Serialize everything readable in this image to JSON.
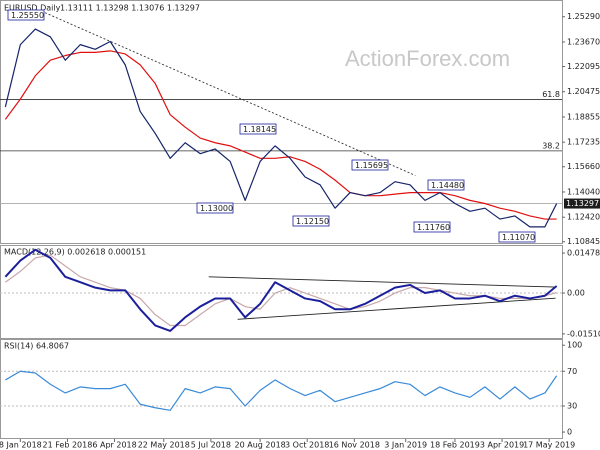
{
  "chart_data": [
    {
      "type": "line",
      "title": "EURUSD Daily",
      "ohlc": "1.13111 1.13298 1.13076 1.13297",
      "watermark": "ActionForex.com",
      "xlim": [
        "2017-12-20",
        "2019-05-29"
      ],
      "x": [
        "2017-12-25",
        "2018-01-08",
        "2018-01-22",
        "2018-02-05",
        "2018-02-19",
        "2018-03-05",
        "2018-03-19",
        "2018-04-02",
        "2018-04-16",
        "2018-04-30",
        "2018-05-14",
        "2018-05-28",
        "2018-06-11",
        "2018-06-25",
        "2018-07-09",
        "2018-07-23",
        "2018-08-06",
        "2018-08-20",
        "2018-09-03",
        "2018-09-17",
        "2018-10-01",
        "2018-10-15",
        "2018-10-29",
        "2018-11-12",
        "2018-11-26",
        "2018-12-10",
        "2018-12-24",
        "2019-01-07",
        "2019-01-21",
        "2019-02-04",
        "2019-02-18",
        "2019-03-04",
        "2019-03-18",
        "2019-04-01",
        "2019-04-15",
        "2019-04-29",
        "2019-05-13",
        "2019-05-24"
      ],
      "ylim": [
        1.107,
        1.263
      ],
      "yticks": [
        {
          "value": 1.2529,
          "label": "1.25290"
        },
        {
          "value": 1.2367,
          "label": "1.23670"
        },
        {
          "value": 1.22095,
          "label": "1.22095"
        },
        {
          "value": 1.20475,
          "label": "1.20475"
        },
        {
          "value": 1.18855,
          "label": "1.18855"
        },
        {
          "value": 1.17235,
          "label": "1.17235"
        },
        {
          "value": 1.1566,
          "label": "1.15660"
        },
        {
          "value": 1.1404,
          "label": "1.14040"
        },
        {
          "value": 1.1242,
          "label": "1.12420"
        },
        {
          "value": 1.10845,
          "label": "1.10845"
        }
      ],
      "last_price": {
        "value": 1.13297,
        "label": "1.13297"
      },
      "fib_levels": [
        {
          "label": "61.8",
          "value": 1.1998
        },
        {
          "label": "38.2",
          "value": 1.1668
        }
      ],
      "trendline": {
        "x": [
          "2018-01-31",
          "2019-01-12"
        ],
        "values": [
          1.2555,
          1.151
        ]
      },
      "annotations": [
        "1.25550",
        "1.18145",
        "1.13000",
        "1.12150",
        "1.15695",
        "1.14480",
        "1.11760",
        "1.11070"
      ],
      "series": [
        {
          "color": "#16246a",
          "values": [
            1.195,
            1.235,
            1.245,
            1.24,
            1.225,
            1.235,
            1.232,
            1.237,
            1.222,
            1.192,
            1.178,
            1.162,
            1.172,
            1.165,
            1.168,
            1.16,
            1.135,
            1.16,
            1.17,
            1.162,
            1.15,
            1.145,
            1.13,
            1.14,
            1.138,
            1.14,
            1.147,
            1.145,
            1.135,
            1.14,
            1.133,
            1.128,
            1.13,
            1.123,
            1.125,
            1.118,
            1.118,
            1.13297
          ]
        },
        {
          "color": "#e01010",
          "values": [
            1.187,
            1.2,
            1.215,
            1.225,
            1.228,
            1.23,
            1.23,
            1.231,
            1.229,
            1.222,
            1.21,
            1.19,
            1.182,
            1.175,
            1.172,
            1.17,
            1.166,
            1.162,
            1.162,
            1.163,
            1.16,
            1.155,
            1.148,
            1.14,
            1.138,
            1.138,
            1.139,
            1.14,
            1.14,
            1.14,
            1.138,
            1.135,
            1.133,
            1.13,
            1.128,
            1.125,
            1.123,
            1.123
          ]
        }
      ]
    },
    {
      "type": "line",
      "title": "MACD(12,26,9) 0.002618 0.000151",
      "xlim": [
        "2017-12-20",
        "2019-05-29"
      ],
      "x": [
        "2017-12-25",
        "2018-01-08",
        "2018-01-22",
        "2018-02-05",
        "2018-02-19",
        "2018-03-05",
        "2018-03-19",
        "2018-04-02",
        "2018-04-16",
        "2018-04-30",
        "2018-05-14",
        "2018-05-28",
        "2018-06-11",
        "2018-06-25",
        "2018-07-09",
        "2018-07-23",
        "2018-08-06",
        "2018-08-20",
        "2018-09-03",
        "2018-09-17",
        "2018-10-01",
        "2018-10-15",
        "2018-10-29",
        "2018-11-12",
        "2018-11-26",
        "2018-12-10",
        "2018-12-24",
        "2019-01-07",
        "2019-01-21",
        "2019-02-04",
        "2019-02-18",
        "2019-03-04",
        "2019-03-18",
        "2019-04-01",
        "2019-04-15",
        "2019-04-29",
        "2019-05-13",
        "2019-05-24"
      ],
      "ylim": [
        -0.017,
        0.0174
      ],
      "yticks": [
        0.014786,
        {
          "value": 0,
          "label": "0.00"
        },
        -0.015107
      ],
      "trendlines": [
        {
          "x": [
            "2018-07-03",
            "2019-05-23"
          ],
          "values": [
            0.006,
            0.0022
          ]
        },
        {
          "x": [
            "2018-07-30",
            "2019-05-23"
          ],
          "values": [
            -0.0097,
            -0.0019
          ]
        }
      ],
      "series": [
        {
          "color": "#1c1f9c",
          "values": [
            0.006,
            0.012,
            0.016,
            0.013,
            0.006,
            0.004,
            0.002,
            0.001,
            0.001,
            -0.006,
            -0.012,
            -0.014,
            -0.009,
            -0.005,
            -0.002,
            -0.002,
            -0.009,
            -0.004,
            0.004,
            0.001,
            -0.002,
            -0.003,
            -0.006,
            -0.006,
            -0.004,
            -0.001,
            0.002,
            0.003,
            0,
            0.001,
            -0.002,
            -0.002,
            -0.001,
            -0.003,
            -0.001,
            -0.002,
            -0.001,
            0.002618
          ]
        },
        {
          "color": "#c9a9a9",
          "values": [
            0.004,
            0.008,
            0.013,
            0.014,
            0.01,
            0.006,
            0.004,
            0.002,
            0.001,
            -0.002,
            -0.008,
            -0.012,
            -0.012,
            -0.008,
            -0.004,
            -0.002,
            -0.005,
            -0.006,
            0,
            0.002,
            0,
            -0.002,
            -0.004,
            -0.006,
            -0.005,
            -0.003,
            0,
            0.002,
            0.002,
            0.001,
            0,
            -0.001,
            -0.001,
            -0.002,
            -0.002,
            -0.002,
            -0.001,
            0.000151
          ]
        }
      ]
    },
    {
      "type": "line",
      "title": "RSI(14) 64.8067",
      "xlim": [
        "2017-12-20",
        "2019-05-29"
      ],
      "x": [
        "2017-12-25",
        "2018-01-08",
        "2018-01-22",
        "2018-02-05",
        "2018-02-19",
        "2018-03-05",
        "2018-03-19",
        "2018-04-02",
        "2018-04-16",
        "2018-04-30",
        "2018-05-14",
        "2018-05-28",
        "2018-06-11",
        "2018-06-25",
        "2018-07-09",
        "2018-07-23",
        "2018-08-06",
        "2018-08-20",
        "2018-09-03",
        "2018-09-17",
        "2018-10-01",
        "2018-10-15",
        "2018-10-29",
        "2018-11-12",
        "2018-11-26",
        "2018-12-10",
        "2018-12-24",
        "2019-01-07",
        "2019-01-21",
        "2019-02-04",
        "2019-02-18",
        "2019-03-04",
        "2019-03-18",
        "2019-04-01",
        "2019-04-15",
        "2019-04-29",
        "2019-05-13",
        "2019-05-24"
      ],
      "ylim": [
        -8,
        106
      ],
      "yticks": [
        100,
        70,
        30,
        0
      ],
      "xticks": [
        {
          "value": "2018-01-08",
          "label": "8 Jan 2018"
        },
        {
          "value": "2018-02-21",
          "label": "21 Feb 2018"
        },
        {
          "value": "2018-04-06",
          "label": "6 Apr 2018"
        },
        {
          "value": "2018-05-22",
          "label": "22 May 2018"
        },
        {
          "value": "2018-07-05",
          "label": "5 Jul 2018"
        },
        {
          "value": "2018-08-20",
          "label": "20 Aug 2018"
        },
        {
          "value": "2018-10-03",
          "label": "3 Oct 2018"
        },
        {
          "value": "2018-11-16",
          "label": "16 Nov 2018"
        },
        {
          "value": "2019-01-03",
          "label": "3 Jan 2019"
        },
        {
          "value": "2019-02-18",
          "label": "18 Feb 2019"
        },
        {
          "value": "2019-04-03",
          "label": "3 Apr 2019"
        },
        {
          "value": "2019-05-17",
          "label": "17 May 2019"
        }
      ],
      "series": [
        {
          "color": "#3a8ad8",
          "values": [
            60,
            70,
            68,
            55,
            45,
            52,
            50,
            50,
            55,
            32,
            28,
            25,
            50,
            45,
            52,
            50,
            30,
            48,
            60,
            50,
            42,
            48,
            35,
            40,
            45,
            50,
            58,
            55,
            42,
            52,
            45,
            40,
            52,
            38,
            52,
            38,
            45,
            64.8067
          ]
        }
      ]
    }
  ]
}
